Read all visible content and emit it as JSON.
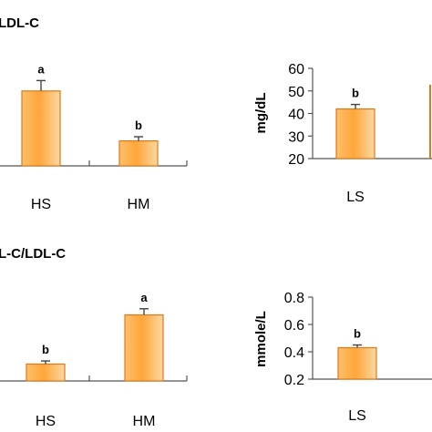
{
  "chart_data": [
    {
      "panel": "top-left",
      "type": "bar",
      "title": "LDL-C",
      "categories": [
        "HS",
        "HM"
      ],
      "values": [
        46,
        22
      ],
      "errors": [
        5,
        2
      ],
      "significance": [
        "a",
        "b"
      ],
      "ylim": [
        10,
        70
      ]
    },
    {
      "panel": "top-right",
      "type": "bar",
      "title": "",
      "ylabel": "mg/dL",
      "yticks": [
        20,
        30,
        40,
        50,
        60
      ],
      "ylim": [
        20,
        60
      ],
      "categories": [
        "LS"
      ],
      "values": [
        42
      ],
      "errors": [
        2
      ],
      "significance": [
        "b"
      ]
    },
    {
      "panel": "bottom-left",
      "type": "bar",
      "title": "L-C/LDL-C",
      "categories": [
        "HS",
        "HM"
      ],
      "values": [
        0.26,
        0.58
      ],
      "errors": [
        0.02,
        0.04
      ],
      "significance": [
        "b",
        "a"
      ],
      "ylim": [
        0.15,
        0.85
      ]
    },
    {
      "panel": "bottom-right",
      "type": "bar",
      "title": "",
      "ylabel": "mmole/L",
      "yticks": [
        0.2,
        0.4,
        0.6,
        0.8
      ],
      "ylim": [
        0.2,
        0.8
      ],
      "categories": [
        "LS"
      ],
      "values": [
        0.43
      ],
      "errors": [
        0.02
      ],
      "significance": [
        "b"
      ]
    }
  ],
  "colors": {
    "bar_top": "#ffa63a",
    "bar_mid": "#fcc06b",
    "bar_light": "#fbd9a3",
    "bar_edge": "#e07818",
    "axis": "#555555"
  }
}
